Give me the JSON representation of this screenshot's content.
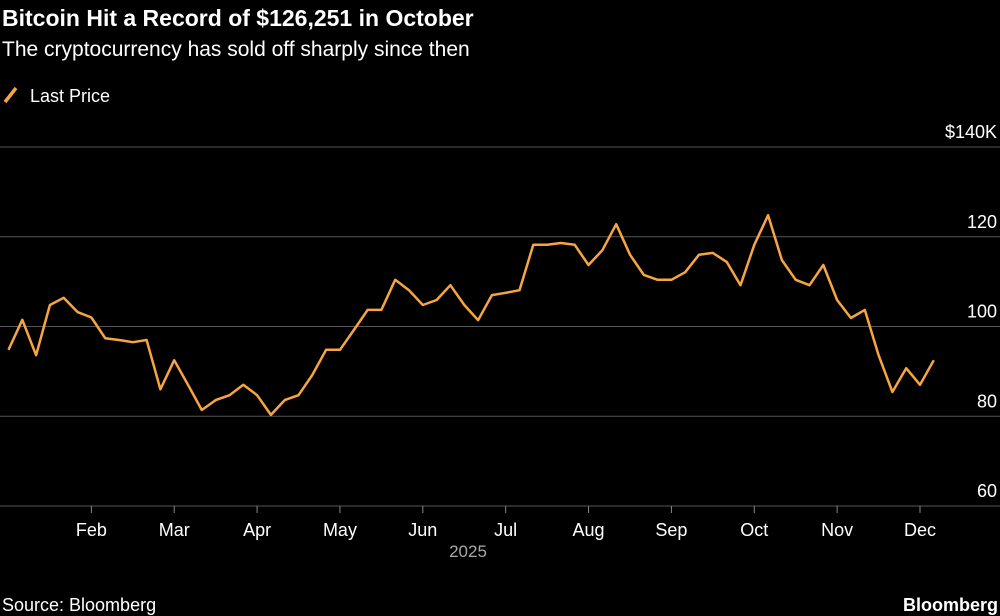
{
  "chart_data": {
    "type": "line",
    "title": "Bitcoin Hit a Record of $126,251 in October",
    "subtitle": "The cryptocurrency has sold off sharply since then",
    "x_label": "2025",
    "source": "Source: Bloomberg",
    "brand": "Bloomberg",
    "categories": [
      null,
      null,
      null,
      null,
      null,
      null,
      "Feb",
      null,
      null,
      null,
      null,
      null,
      "Mar",
      null,
      null,
      null,
      null,
      null,
      "Apr",
      null,
      null,
      null,
      null,
      null,
      "May",
      null,
      null,
      null,
      null,
      null,
      "Jun",
      null,
      null,
      null,
      null,
      null,
      "Jul",
      null,
      null,
      null,
      null,
      null,
      "Aug",
      null,
      null,
      null,
      null,
      null,
      "Sep",
      null,
      null,
      null,
      null,
      null,
      "Oct",
      null,
      null,
      null,
      null,
      null,
      "Nov",
      null,
      null,
      null,
      null,
      null,
      "Dec",
      null
    ],
    "series": [
      {
        "name": "Last Price",
        "color": "#f7a541",
        "values": [
          94.8,
          101.5,
          93.6,
          104.8,
          106.4,
          103.2,
          102,
          97.4,
          97,
          96.5,
          97,
          86,
          92.5,
          87,
          81.4,
          83.6,
          84.7,
          87,
          84.7,
          80.3,
          83.6,
          84.7,
          89.2,
          94.8,
          94.8,
          99.2,
          103.7,
          103.7,
          110.4,
          108.1,
          104.8,
          105.9,
          109.2,
          104.8,
          101.4,
          107,
          107.5,
          108.1,
          118.2,
          118.2,
          118.6,
          118.2,
          113.7,
          117,
          122.8,
          116,
          111.5,
          110.4,
          110.4,
          112.1,
          116,
          116.4,
          114.4,
          109.2,
          118.2,
          124.8,
          114.8,
          110.4,
          109.2,
          113.7,
          105.9,
          101.9,
          103.7,
          93.6,
          85.4,
          90.7,
          87,
          92.5
        ]
      }
    ],
    "ylim": [
      60,
      140
    ],
    "yticks": [
      60,
      80,
      100,
      120,
      {
        "value": 140,
        "label": "$140K"
      }
    ],
    "grid": true,
    "legend": "top-left"
  }
}
